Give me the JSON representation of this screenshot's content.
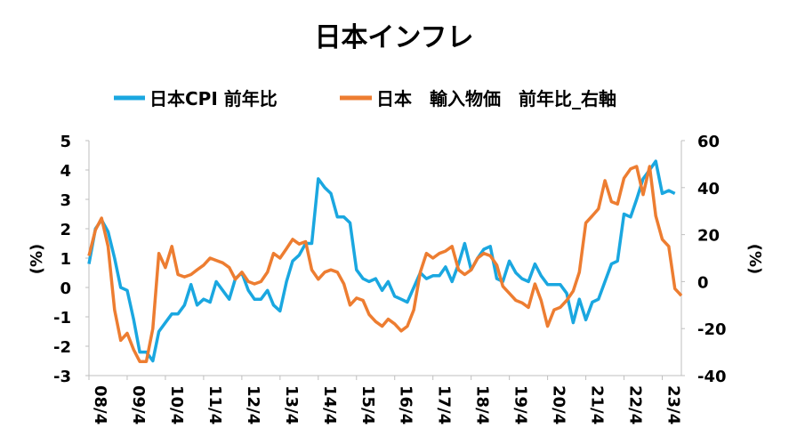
{
  "chart_data": {
    "type": "line",
    "title": "日本インフレ",
    "left_axis": {
      "label": "(%)",
      "ylim": [
        -3,
        5
      ],
      "ticks": [
        5,
        4,
        3,
        2,
        1,
        0,
        -1,
        -2,
        -3
      ]
    },
    "right_axis": {
      "label": "(%)",
      "ylim": [
        -40,
        60
      ],
      "ticks": [
        60,
        40,
        20,
        0,
        -20,
        -40
      ]
    },
    "x_ticks": [
      "08/4",
      "09/4",
      "10/4",
      "11/4",
      "12/4",
      "13/4",
      "14/4",
      "15/4",
      "16/4",
      "17/4",
      "18/4",
      "19/4",
      "20/4",
      "21/4",
      "22/4",
      "23/4"
    ],
    "legend_position": "top",
    "grid": false,
    "series": [
      {
        "name": "日本CPI 前年比",
        "axis": "left",
        "color": "#1aa7e0",
        "points": [
          [
            2008.25,
            0.8
          ],
          [
            2008.42,
            2.0
          ],
          [
            2008.58,
            2.3
          ],
          [
            2008.75,
            1.9
          ],
          [
            2008.92,
            1.0
          ],
          [
            2009.08,
            0.0
          ],
          [
            2009.25,
            -0.1
          ],
          [
            2009.42,
            -1.1
          ],
          [
            2009.58,
            -2.2
          ],
          [
            2009.75,
            -2.2
          ],
          [
            2009.92,
            -2.5
          ],
          [
            2010.08,
            -1.5
          ],
          [
            2010.25,
            -1.2
          ],
          [
            2010.42,
            -0.9
          ],
          [
            2010.58,
            -0.9
          ],
          [
            2010.75,
            -0.6
          ],
          [
            2010.92,
            0.1
          ],
          [
            2011.08,
            -0.6
          ],
          [
            2011.25,
            -0.4
          ],
          [
            2011.42,
            -0.5
          ],
          [
            2011.58,
            0.2
          ],
          [
            2011.75,
            -0.1
          ],
          [
            2011.92,
            -0.4
          ],
          [
            2012.08,
            0.3
          ],
          [
            2012.25,
            0.5
          ],
          [
            2012.42,
            -0.1
          ],
          [
            2012.58,
            -0.4
          ],
          [
            2012.75,
            -0.4
          ],
          [
            2012.92,
            -0.1
          ],
          [
            2013.08,
            -0.6
          ],
          [
            2013.25,
            -0.8
          ],
          [
            2013.42,
            0.2
          ],
          [
            2013.58,
            0.9
          ],
          [
            2013.75,
            1.1
          ],
          [
            2013.92,
            1.5
          ],
          [
            2014.08,
            1.5
          ],
          [
            2014.25,
            3.7
          ],
          [
            2014.42,
            3.4
          ],
          [
            2014.58,
            3.2
          ],
          [
            2014.75,
            2.4
          ],
          [
            2014.92,
            2.4
          ],
          [
            2015.08,
            2.2
          ],
          [
            2015.25,
            0.6
          ],
          [
            2015.42,
            0.3
          ],
          [
            2015.58,
            0.2
          ],
          [
            2015.75,
            0.3
          ],
          [
            2015.92,
            -0.1
          ],
          [
            2016.08,
            0.2
          ],
          [
            2016.25,
            -0.3
          ],
          [
            2016.42,
            -0.4
          ],
          [
            2016.58,
            -0.5
          ],
          [
            2016.75,
            0.0
          ],
          [
            2016.92,
            0.5
          ],
          [
            2017.08,
            0.3
          ],
          [
            2017.25,
            0.4
          ],
          [
            2017.42,
            0.4
          ],
          [
            2017.58,
            0.7
          ],
          [
            2017.75,
            0.2
          ],
          [
            2017.92,
            0.8
          ],
          [
            2018.08,
            1.5
          ],
          [
            2018.25,
            0.6
          ],
          [
            2018.42,
            1.0
          ],
          [
            2018.58,
            1.3
          ],
          [
            2018.75,
            1.4
          ],
          [
            2018.92,
            0.3
          ],
          [
            2019.08,
            0.2
          ],
          [
            2019.25,
            0.9
          ],
          [
            2019.42,
            0.5
          ],
          [
            2019.58,
            0.3
          ],
          [
            2019.75,
            0.2
          ],
          [
            2019.92,
            0.8
          ],
          [
            2020.08,
            0.4
          ],
          [
            2020.25,
            0.1
          ],
          [
            2020.42,
            0.1
          ],
          [
            2020.58,
            0.1
          ],
          [
            2020.75,
            -0.2
          ],
          [
            2020.92,
            -1.2
          ],
          [
            2021.08,
            -0.4
          ],
          [
            2021.25,
            -1.1
          ],
          [
            2021.42,
            -0.5
          ],
          [
            2021.58,
            -0.4
          ],
          [
            2021.75,
            0.2
          ],
          [
            2021.92,
            0.8
          ],
          [
            2022.08,
            0.9
          ],
          [
            2022.25,
            2.5
          ],
          [
            2022.42,
            2.4
          ],
          [
            2022.58,
            3.0
          ],
          [
            2022.75,
            3.7
          ],
          [
            2022.92,
            4.0
          ],
          [
            2023.08,
            4.3
          ],
          [
            2023.25,
            3.2
          ],
          [
            2023.42,
            3.3
          ],
          [
            2023.58,
            3.2
          ]
        ]
      },
      {
        "name": "日本　輸入物価　前年比_右軸",
        "axis": "right",
        "color": "#ed7d31",
        "points": [
          [
            2008.25,
            11
          ],
          [
            2008.42,
            22
          ],
          [
            2008.58,
            27
          ],
          [
            2008.75,
            15
          ],
          [
            2008.92,
            -12
          ],
          [
            2009.08,
            -25
          ],
          [
            2009.25,
            -22
          ],
          [
            2009.42,
            -29
          ],
          [
            2009.58,
            -34
          ],
          [
            2009.75,
            -34
          ],
          [
            2009.92,
            -20
          ],
          [
            2010.08,
            12
          ],
          [
            2010.25,
            6
          ],
          [
            2010.42,
            15
          ],
          [
            2010.58,
            3
          ],
          [
            2010.75,
            2
          ],
          [
            2010.92,
            3
          ],
          [
            2011.08,
            5
          ],
          [
            2011.25,
            7
          ],
          [
            2011.42,
            10
          ],
          [
            2011.58,
            9
          ],
          [
            2011.75,
            8
          ],
          [
            2011.92,
            6
          ],
          [
            2012.08,
            1
          ],
          [
            2012.25,
            4
          ],
          [
            2012.42,
            0
          ],
          [
            2012.58,
            -1
          ],
          [
            2012.75,
            0
          ],
          [
            2012.92,
            4
          ],
          [
            2013.08,
            12
          ],
          [
            2013.25,
            10
          ],
          [
            2013.42,
            14
          ],
          [
            2013.58,
            18
          ],
          [
            2013.75,
            16
          ],
          [
            2013.92,
            17
          ],
          [
            2014.08,
            5
          ],
          [
            2014.25,
            1
          ],
          [
            2014.42,
            4
          ],
          [
            2014.58,
            5
          ],
          [
            2014.75,
            4
          ],
          [
            2014.92,
            -1
          ],
          [
            2015.08,
            -10
          ],
          [
            2015.25,
            -7
          ],
          [
            2015.42,
            -8
          ],
          [
            2015.58,
            -14
          ],
          [
            2015.75,
            -17
          ],
          [
            2015.92,
            -19
          ],
          [
            2016.08,
            -16
          ],
          [
            2016.25,
            -18
          ],
          [
            2016.42,
            -21
          ],
          [
            2016.58,
            -19
          ],
          [
            2016.75,
            -12
          ],
          [
            2016.92,
            4
          ],
          [
            2017.08,
            12
          ],
          [
            2017.25,
            10
          ],
          [
            2017.42,
            12
          ],
          [
            2017.58,
            13
          ],
          [
            2017.75,
            15
          ],
          [
            2017.92,
            5
          ],
          [
            2018.08,
            3
          ],
          [
            2018.25,
            5
          ],
          [
            2018.42,
            10
          ],
          [
            2018.58,
            12
          ],
          [
            2018.75,
            11
          ],
          [
            2018.92,
            7
          ],
          [
            2019.08,
            -2
          ],
          [
            2019.25,
            -5
          ],
          [
            2019.42,
            -8
          ],
          [
            2019.58,
            -9
          ],
          [
            2019.75,
            -11
          ],
          [
            2019.92,
            -1
          ],
          [
            2020.08,
            -8
          ],
          [
            2020.25,
            -19
          ],
          [
            2020.42,
            -12
          ],
          [
            2020.58,
            -11
          ],
          [
            2020.75,
            -8
          ],
          [
            2020.92,
            -4
          ],
          [
            2021.08,
            4
          ],
          [
            2021.25,
            25
          ],
          [
            2021.42,
            28
          ],
          [
            2021.58,
            31
          ],
          [
            2021.75,
            43
          ],
          [
            2021.92,
            34
          ],
          [
            2022.08,
            33
          ],
          [
            2022.25,
            44
          ],
          [
            2022.42,
            48
          ],
          [
            2022.58,
            49
          ],
          [
            2022.75,
            37
          ],
          [
            2022.92,
            49
          ],
          [
            2023.08,
            28
          ],
          [
            2023.25,
            18
          ],
          [
            2023.42,
            15
          ],
          [
            2023.58,
            -3
          ],
          [
            2023.75,
            -6
          ]
        ]
      }
    ]
  }
}
